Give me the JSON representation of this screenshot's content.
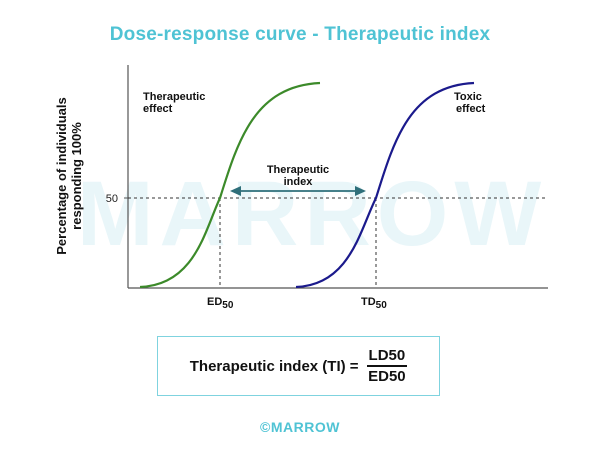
{
  "title": "Dose-response curve - Therapeutic index",
  "axis": {
    "ylabel_line1": "Percentage of individuals",
    "ylabel_line2": "responding 100%",
    "y_tick_50": "50"
  },
  "labels": {
    "therapeutic_effect_line1": "Therapeutic",
    "therapeutic_effect_line2": "effect",
    "toxic_effect_line1": "Toxic",
    "toxic_effect_line2": "effect",
    "therapeutic_index_line1": "Therapeutic",
    "therapeutic_index_line2": "index",
    "ed_main": "ED",
    "ed_sub": "50",
    "td_main": "TD",
    "td_sub": "50"
  },
  "formula": {
    "text": "Therapeutic index (TI) =",
    "numerator": "LD50",
    "denominator": "ED50"
  },
  "watermark": "MARROW",
  "footer": "©MARROW",
  "colors": {
    "title": "#4fc3d4",
    "therapeutic_curve": "#3c8a2a",
    "toxic_curve": "#1b1a8c",
    "arrow": "#2f6f7a",
    "watermark": "#e9f6f9"
  }
}
